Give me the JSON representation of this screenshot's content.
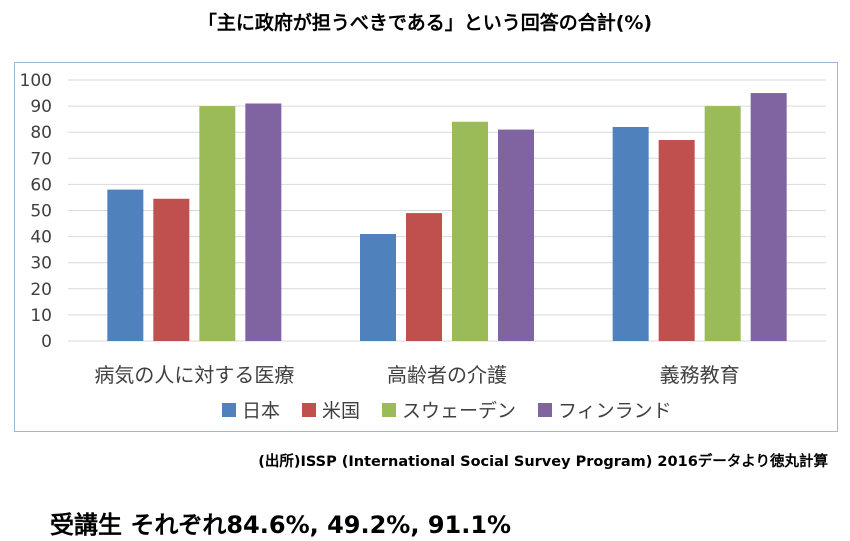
{
  "title": "「主に政府が担うべきである」という回答の合計(%)",
  "chart_data": {
    "type": "bar",
    "categories": [
      "病気の人に対する医療",
      "高齢者の介護",
      "義務教育"
    ],
    "series": [
      {
        "name": "日本",
        "color": "#4f81bd",
        "values": [
          58,
          41,
          82
        ]
      },
      {
        "name": "米国",
        "color": "#c0504d",
        "values": [
          54.5,
          49,
          77
        ]
      },
      {
        "name": "スウェーデン",
        "color": "#9bbb59",
        "values": [
          90,
          84,
          90
        ]
      },
      {
        "name": "フィンランド",
        "color": "#8064a2",
        "values": [
          91,
          81,
          95
        ]
      }
    ],
    "ylim": [
      0,
      100
    ],
    "yticks": [
      "0",
      "10",
      "20",
      "30",
      "40",
      "50",
      "60",
      "70",
      "80",
      "90",
      "100"
    ],
    "grid": true,
    "legend_position": "bottom"
  },
  "source": "(出所)ISSP (International Social Survey Program) 2016データより徳丸計算",
  "note": "受講生 それぞれ84.6%, 49.2%, 91.1%"
}
